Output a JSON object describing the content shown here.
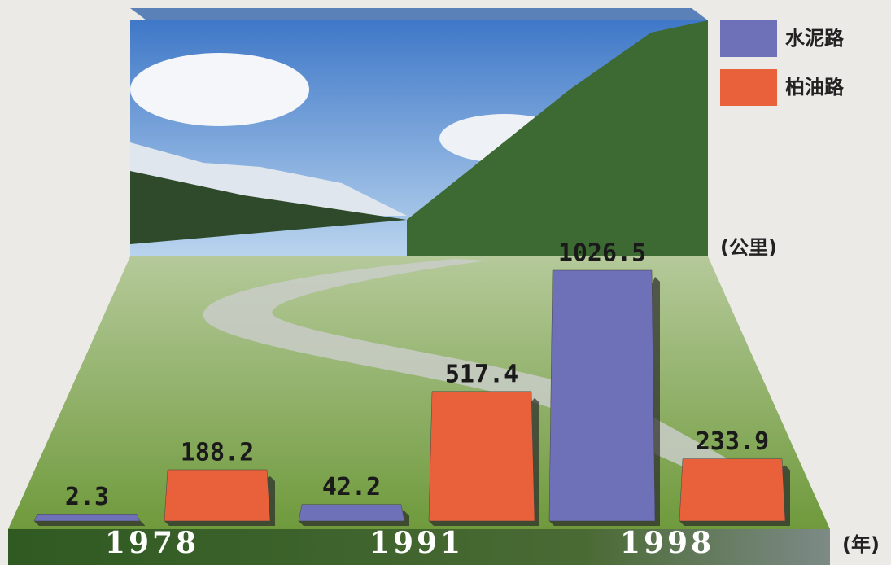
{
  "chart_data": {
    "type": "bar",
    "unit_label": "(公里)",
    "x_label": "(年)",
    "categories": [
      "1978",
      "1991",
      "1998"
    ],
    "series": [
      {
        "name": "水泥路",
        "color": "#6e70b8",
        "values": [
          2.3,
          42.2,
          1026.5
        ]
      },
      {
        "name": "柏油路",
        "color": "#e8613a",
        "values": [
          188.2,
          517.4,
          233.9
        ]
      }
    ],
    "legend": "top-right"
  }
}
